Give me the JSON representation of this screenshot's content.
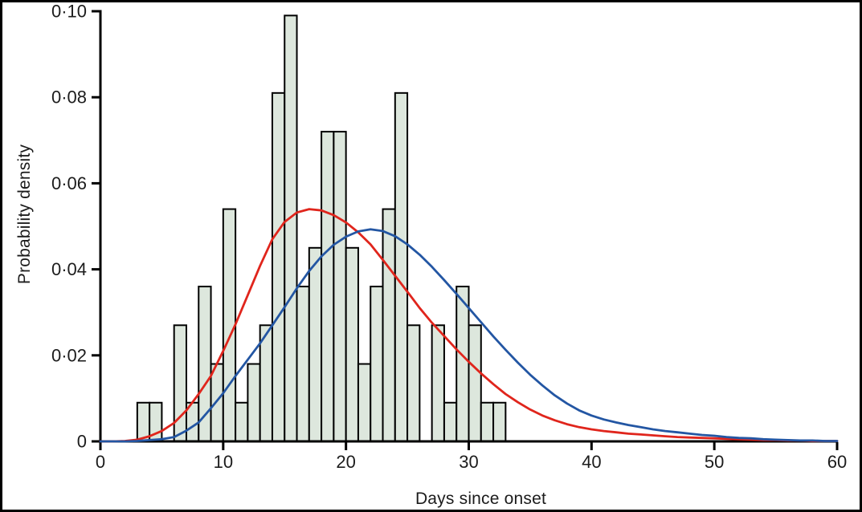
{
  "figure": {
    "background_color": "#ffffff",
    "frame_color": "#000000",
    "text_color": "#1c1c1c"
  },
  "chart_data": {
    "type": "histogram_with_fitted_curves",
    "title": "",
    "xlabel": "Days since onset",
    "ylabel": "Probability density",
    "xlim": [
      0,
      60
    ],
    "ylim": [
      0,
      0.1
    ],
    "grid": false,
    "legend": "none",
    "x_axis": {
      "label": "Days since onset",
      "ticks": [
        0,
        10,
        20,
        30,
        40,
        50,
        60
      ],
      "tick_labels": [
        "0",
        "10",
        "20",
        "30",
        "40",
        "50",
        "60"
      ]
    },
    "y_axis": {
      "label": "Probability density",
      "ticks": [
        0,
        0.02,
        0.04,
        0.06,
        0.08,
        0.1
      ],
      "tick_labels": [
        "0",
        "0·02",
        "0·04",
        "0·06",
        "0·08",
        "0·10"
      ]
    },
    "histogram": {
      "name": "observed-distribution",
      "bin_width_days": 1,
      "fill_color": "#dde7dd",
      "stroke_color": "#000000",
      "bins": [
        {
          "day_start": 3,
          "density": 0.009
        },
        {
          "day_start": 4,
          "density": 0.009
        },
        {
          "day_start": 6,
          "density": 0.027
        },
        {
          "day_start": 7,
          "density": 0.009
        },
        {
          "day_start": 8,
          "density": 0.036
        },
        {
          "day_start": 9,
          "density": 0.018
        },
        {
          "day_start": 10,
          "density": 0.054
        },
        {
          "day_start": 11,
          "density": 0.009
        },
        {
          "day_start": 12,
          "density": 0.018
        },
        {
          "day_start": 13,
          "density": 0.027
        },
        {
          "day_start": 14,
          "density": 0.081
        },
        {
          "day_start": 15,
          "density": 0.099
        },
        {
          "day_start": 16,
          "density": 0.036
        },
        {
          "day_start": 17,
          "density": 0.045
        },
        {
          "day_start": 18,
          "density": 0.072
        },
        {
          "day_start": 19,
          "density": 0.072
        },
        {
          "day_start": 20,
          "density": 0.045
        },
        {
          "day_start": 21,
          "density": 0.018
        },
        {
          "day_start": 22,
          "density": 0.036
        },
        {
          "day_start": 23,
          "density": 0.054
        },
        {
          "day_start": 24,
          "density": 0.081
        },
        {
          "day_start": 25,
          "density": 0.027
        },
        {
          "day_start": 27,
          "density": 0.027
        },
        {
          "day_start": 28,
          "density": 0.009
        },
        {
          "day_start": 29,
          "density": 0.036
        },
        {
          "day_start": 30,
          "density": 0.027
        },
        {
          "day_start": 31,
          "density": 0.009
        },
        {
          "day_start": 32,
          "density": 0.009
        }
      ]
    },
    "curves": [
      {
        "name": "red-fitted-curve",
        "color": "#e0251c",
        "x_days": [
          0,
          1,
          2,
          3,
          4,
          5,
          6,
          7,
          8,
          9,
          10,
          11,
          12,
          13,
          14,
          15,
          16,
          17,
          18,
          19,
          20,
          21,
          22,
          23,
          24,
          25,
          26,
          27,
          28,
          29,
          30,
          31,
          32,
          33,
          34,
          35,
          36,
          37,
          38,
          39,
          40,
          41,
          42,
          43,
          44,
          45,
          46,
          47,
          48,
          49,
          50,
          51,
          52,
          53,
          54,
          55,
          56,
          57,
          58,
          59,
          60
        ],
        "density": [
          0,
          0,
          0.0001,
          0.0004,
          0.0012,
          0.0024,
          0.0043,
          0.0072,
          0.011,
          0.0152,
          0.021,
          0.0272,
          0.034,
          0.0408,
          0.047,
          0.051,
          0.0532,
          0.054,
          0.0537,
          0.0526,
          0.0509,
          0.0486,
          0.0458,
          0.0422,
          0.0385,
          0.0348,
          0.031,
          0.0276,
          0.0245,
          0.0214,
          0.0185,
          0.0158,
          0.0133,
          0.011,
          0.0091,
          0.0074,
          0.006,
          0.0049,
          0.004,
          0.0033,
          0.0028,
          0.0024,
          0.0021,
          0.0018,
          0.0016,
          0.0014,
          0.0012,
          0.001,
          0.0009,
          0.0008,
          0.0007,
          0.0006,
          0.0005,
          0.0004,
          0.0003,
          0.0003,
          0.0002,
          0.0002,
          0.0001,
          0.0001,
          0.0001
        ],
        "peak": {
          "day": 17.4,
          "density": 0.054
        }
      },
      {
        "name": "blue-fitted-curve",
        "color": "#2356a3",
        "x_days": [
          0,
          1,
          2,
          3,
          4,
          5,
          6,
          7,
          8,
          9,
          10,
          11,
          12,
          13,
          14,
          15,
          16,
          17,
          18,
          19,
          20,
          21,
          22,
          23,
          24,
          25,
          26,
          27,
          28,
          29,
          30,
          31,
          32,
          33,
          34,
          35,
          36,
          37,
          38,
          39,
          40,
          41,
          42,
          43,
          44,
          45,
          46,
          47,
          48,
          49,
          50,
          51,
          52,
          53,
          54,
          55,
          56,
          57,
          58,
          59,
          60
        ],
        "density": [
          0,
          0,
          0,
          0.0001,
          0.0003,
          0.0005,
          0.001,
          0.0025,
          0.0044,
          0.0077,
          0.0112,
          0.0152,
          0.019,
          0.0228,
          0.027,
          0.0312,
          0.0356,
          0.0396,
          0.043,
          0.0457,
          0.0476,
          0.0488,
          0.0493,
          0.0489,
          0.0477,
          0.0458,
          0.0434,
          0.0406,
          0.0375,
          0.0343,
          0.031,
          0.0277,
          0.0244,
          0.0213,
          0.0183,
          0.0155,
          0.013,
          0.0107,
          0.0088,
          0.0072,
          0.006,
          0.0051,
          0.0044,
          0.0038,
          0.0033,
          0.0028,
          0.0024,
          0.0021,
          0.0018,
          0.0015,
          0.0013,
          0.001,
          0.0008,
          0.0007,
          0.0005,
          0.0004,
          0.0003,
          0.0002,
          0.0002,
          0.0001,
          0.0001
        ],
        "peak": {
          "day": 21.8,
          "density": 0.0493
        }
      }
    ]
  }
}
